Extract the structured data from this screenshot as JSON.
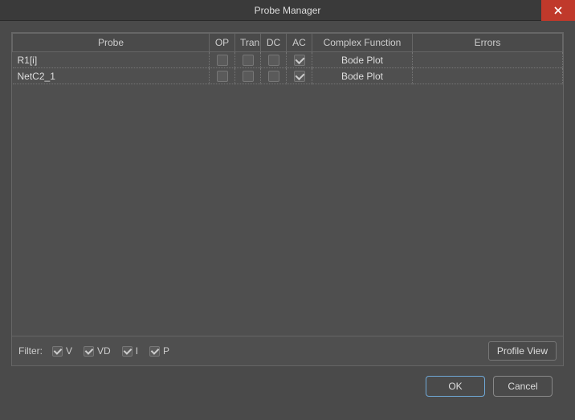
{
  "window": {
    "title": "Probe Manager"
  },
  "table": {
    "headers": {
      "probe": "Probe",
      "op": "OP",
      "tran": "Tran",
      "dc": "DC",
      "ac": "AC",
      "complex": "Complex Function",
      "errors": "Errors"
    },
    "rows": [
      {
        "probe": "R1[i]",
        "op": false,
        "tran": false,
        "dc": false,
        "ac": true,
        "complex": "Bode Plot",
        "errors": ""
      },
      {
        "probe": "NetC2_1",
        "op": false,
        "tran": false,
        "dc": false,
        "ac": true,
        "complex": "Bode Plot",
        "errors": ""
      }
    ]
  },
  "filter": {
    "label": "Filter:",
    "items": [
      {
        "key": "v",
        "label": "V",
        "checked": true
      },
      {
        "key": "vd",
        "label": "VD",
        "checked": true
      },
      {
        "key": "i",
        "label": "I",
        "checked": true
      },
      {
        "key": "p",
        "label": "P",
        "checked": true
      }
    ]
  },
  "buttons": {
    "profile_view": "Profile View",
    "ok": "OK",
    "cancel": "Cancel"
  }
}
